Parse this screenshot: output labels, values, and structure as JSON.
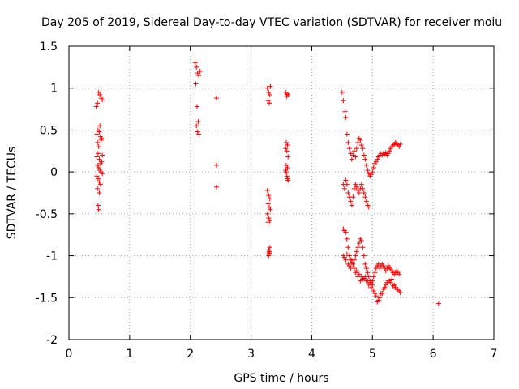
{
  "chart_data": {
    "type": "scatter",
    "title": "Day 205 of 2019, Sidereal Day-to-day VTEC variation (SDTVAR) for receiver moiu",
    "xlabel": "GPS time / hours",
    "ylabel": "SDTVAR / TECUs",
    "xlim": [
      0,
      7
    ],
    "ylim": [
      -2,
      1.5
    ],
    "grid": true,
    "x_ticks": [
      "0",
      "1",
      "2",
      "3",
      "4",
      "5",
      "6",
      "7"
    ],
    "y_ticks": [
      "1.5",
      "1",
      "0.5",
      "0",
      "-0.5",
      "-1",
      "-1.5",
      "-2"
    ],
    "marker": "+",
    "color": "#ff0000",
    "series": [
      {
        "name": "SDTVAR",
        "x": [
          0.45,
          0.47,
          0.49,
          0.51,
          0.53,
          0.55,
          0.46,
          0.48,
          0.5,
          0.52,
          0.54,
          0.47,
          0.49,
          0.51,
          0.53,
          0.55,
          0.46,
          0.48,
          0.5,
          0.52,
          0.54,
          0.47,
          0.49,
          0.51,
          0.53,
          0.55,
          0.46,
          0.48,
          0.5,
          0.52,
          0.47,
          0.5,
          0.48,
          0.49,
          2.08,
          2.1,
          2.12,
          2.14,
          2.16,
          2.09,
          2.11,
          2.13,
          2.1,
          2.12,
          2.14,
          2.43,
          2.43,
          2.43,
          3.27,
          3.29,
          3.31,
          3.28,
          3.3,
          3.32,
          3.27,
          3.29,
          3.31,
          3.28,
          3.3,
          3.32,
          3.27,
          3.29,
          3.31,
          3.28,
          3.3,
          3.27,
          3.29,
          3.31,
          3.29,
          3.31,
          3.57,
          3.59,
          3.61,
          3.58,
          3.6,
          3.57,
          3.59,
          3.61,
          3.58,
          3.6,
          3.57,
          3.59,
          3.61,
          3.58,
          3.6,
          3.59,
          4.5,
          4.52,
          4.55,
          4.56,
          4.58,
          4.6,
          4.62,
          4.64,
          4.66,
          4.68,
          4.7,
          4.72,
          4.74,
          4.76,
          4.78,
          4.8,
          4.82,
          4.84,
          4.86,
          4.88,
          4.9,
          4.92,
          4.94,
          4.96,
          4.98,
          5.0,
          5.02,
          5.04,
          5.06,
          5.08,
          5.1,
          5.12,
          5.14,
          5.16,
          5.18,
          5.2,
          5.22,
          5.24,
          5.26,
          5.28,
          5.3,
          5.32,
          5.34,
          5.36,
          5.38,
          5.4,
          5.42,
          5.44,
          5.46,
          4.52,
          4.54,
          4.56,
          4.58,
          4.6,
          4.62,
          4.64,
          4.66,
          4.68,
          4.7,
          4.72,
          4.74,
          4.76,
          4.78,
          4.8,
          4.82,
          4.84,
          4.86,
          4.88,
          4.9,
          4.92,
          4.94,
          4.52,
          4.54,
          4.56,
          4.58,
          4.6,
          4.62,
          4.64,
          4.66,
          4.68,
          4.7,
          4.72,
          4.74,
          4.76,
          4.78,
          4.8,
          4.82,
          4.84,
          4.86,
          4.88,
          4.9,
          4.92,
          4.94,
          4.96,
          4.98,
          5.0,
          5.02,
          5.04,
          5.06,
          5.08,
          5.1,
          5.12,
          5.14,
          5.16,
          5.18,
          5.2,
          5.22,
          5.24,
          5.26,
          5.28,
          5.3,
          5.32,
          5.34,
          5.36,
          5.38,
          5.4,
          5.42,
          5.44,
          4.52,
          4.56,
          4.6,
          4.64,
          4.68,
          4.72,
          4.76,
          4.8,
          4.84,
          4.88,
          4.92,
          4.96,
          5.0,
          5.04,
          5.08,
          5.12,
          5.16,
          5.2,
          5.24,
          5.28,
          5.32,
          5.36,
          5.4,
          5.44,
          4.54,
          4.58,
          4.62,
          4.66,
          4.7,
          4.74,
          4.78,
          4.82,
          4.86,
          4.9,
          4.94,
          4.98,
          5.02,
          5.06,
          5.1,
          5.14,
          5.18,
          5.22,
          5.26,
          5.3,
          5.34,
          5.38,
          5.42,
          5.46,
          6.09
        ],
        "y": [
          0.78,
          0.82,
          0.95,
          0.92,
          0.88,
          0.86,
          0.45,
          0.5,
          0.48,
          0.42,
          0.4,
          0.35,
          0.3,
          0.55,
          0.38,
          0.2,
          0.18,
          0.22,
          0.15,
          0.1,
          0.12,
          0.08,
          0.05,
          0.02,
          0.0,
          -0.02,
          -0.05,
          -0.08,
          -0.12,
          -0.15,
          -0.2,
          -0.25,
          -0.4,
          -0.45,
          1.3,
          1.25,
          1.18,
          1.15,
          1.2,
          1.05,
          0.78,
          0.6,
          0.55,
          0.48,
          0.45,
          0.88,
          0.08,
          -0.18,
          1.0,
          0.95,
          0.92,
          0.85,
          0.82,
          1.02,
          -0.22,
          -0.28,
          -0.32,
          -0.38,
          -0.42,
          -0.45,
          -0.5,
          -0.55,
          -0.58,
          -0.6,
          -0.95,
          -0.98,
          -1.0,
          -0.97,
          -0.93,
          -0.9,
          0.95,
          0.93,
          0.92,
          0.35,
          0.32,
          0.28,
          0.25,
          0.18,
          0.08,
          0.05,
          0.02,
          -0.05,
          -0.1,
          0.0,
          -0.08,
          0.9,
          0.95,
          0.85,
          0.72,
          0.65,
          0.45,
          0.35,
          0.28,
          0.22,
          0.15,
          0.2,
          0.25,
          0.18,
          0.28,
          0.35,
          0.4,
          0.38,
          0.32,
          0.28,
          0.2,
          0.15,
          0.08,
          0.02,
          -0.02,
          -0.05,
          -0.03,
          0.0,
          0.05,
          0.1,
          0.12,
          0.15,
          0.18,
          0.2,
          0.22,
          0.2,
          0.22,
          0.21,
          0.23,
          0.2,
          0.22,
          0.25,
          0.28,
          0.3,
          0.32,
          0.33,
          0.35,
          0.34,
          0.32,
          0.3,
          0.33,
          -0.15,
          -0.2,
          -0.1,
          -0.15,
          -0.25,
          -0.3,
          -0.35,
          -0.4,
          -0.3,
          -0.2,
          -0.15,
          -0.18,
          -0.22,
          -0.25,
          -0.2,
          -0.15,
          -0.2,
          -0.25,
          -0.3,
          -0.35,
          -0.4,
          -0.42,
          -0.68,
          -0.7,
          -0.72,
          -0.8,
          -0.9,
          -1.0,
          -1.05,
          -1.08,
          -1.1,
          -1.05,
          -1.0,
          -0.95,
          -0.9,
          -0.85,
          -0.8,
          -0.82,
          -0.9,
          -1.0,
          -1.1,
          -1.15,
          -1.2,
          -1.25,
          -1.3,
          -1.32,
          -1.3,
          -1.25,
          -1.2,
          -1.15,
          -1.12,
          -1.1,
          -1.15,
          -1.12,
          -1.1,
          -1.12,
          -1.15,
          -1.18,
          -1.15,
          -1.12,
          -1.14,
          -1.16,
          -1.18,
          -1.2,
          -1.22,
          -1.2,
          -1.18,
          -1.2,
          -1.22,
          -1.0,
          -1.05,
          -1.1,
          -1.15,
          -1.1,
          -1.2,
          -1.25,
          -1.3,
          -1.28,
          -1.25,
          -1.3,
          -1.32,
          -1.35,
          -1.45,
          -1.55,
          -1.5,
          -1.45,
          -1.38,
          -1.32,
          -1.3,
          -1.28,
          -1.35,
          -1.4,
          -1.42,
          -1.02,
          -0.98,
          -1.12,
          -1.05,
          -1.15,
          -1.18,
          -1.22,
          -1.25,
          -1.27,
          -1.3,
          -1.35,
          -1.38,
          -1.42,
          -1.48,
          -1.53,
          -1.45,
          -1.4,
          -1.35,
          -1.3,
          -1.32,
          -1.36,
          -1.38,
          -1.4,
          -1.44,
          -1.57
        ]
      }
    ]
  }
}
